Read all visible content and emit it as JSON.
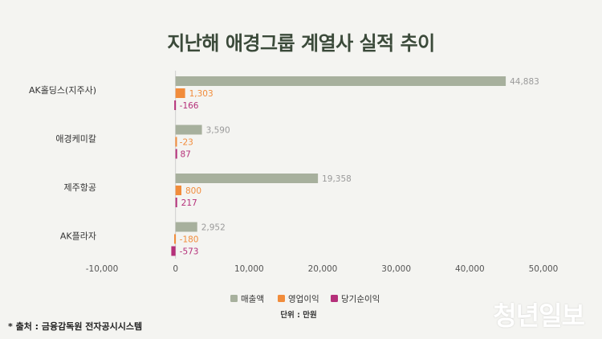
{
  "title": "지난해 애경그룹 계열사 실적 추이",
  "source": "* 출처 : 금융감독원 전자공시시스템",
  "logo": "청년일보",
  "unit": "단위 : 만원",
  "colors": {
    "revenue": "#a7b09d",
    "operating": "#f18c3b",
    "net": "#b5307a",
    "axis_text": "#555555"
  },
  "chart_data": {
    "type": "bar",
    "orientation": "horizontal",
    "categories": [
      "AK홀딩스(지주사)",
      "애경케미칼",
      "제주항공",
      "AK플라자"
    ],
    "series": [
      {
        "name": "매출액",
        "values": [
          44883,
          3590,
          19358,
          2952
        ],
        "labels": [
          "44,883",
          "3,590",
          "19,358",
          "2,952"
        ]
      },
      {
        "name": "영업이익",
        "values": [
          1303,
          -23,
          800,
          -180
        ],
        "labels": [
          "1,303",
          "-23",
          "800",
          "-180"
        ]
      },
      {
        "name": "당기순이익",
        "values": [
          -166,
          87,
          217,
          -573
        ],
        "labels": [
          "-166",
          "87",
          "217",
          "-573"
        ]
      }
    ],
    "xlim": [
      -10000,
      50000
    ],
    "xticks": [
      -10000,
      0,
      10000,
      20000,
      30000,
      40000,
      50000
    ],
    "xtick_labels": [
      "-10,000",
      "0",
      "10,000",
      "20,000",
      "30,000",
      "40,000",
      "50,000"
    ],
    "legend_position": "bottom"
  }
}
